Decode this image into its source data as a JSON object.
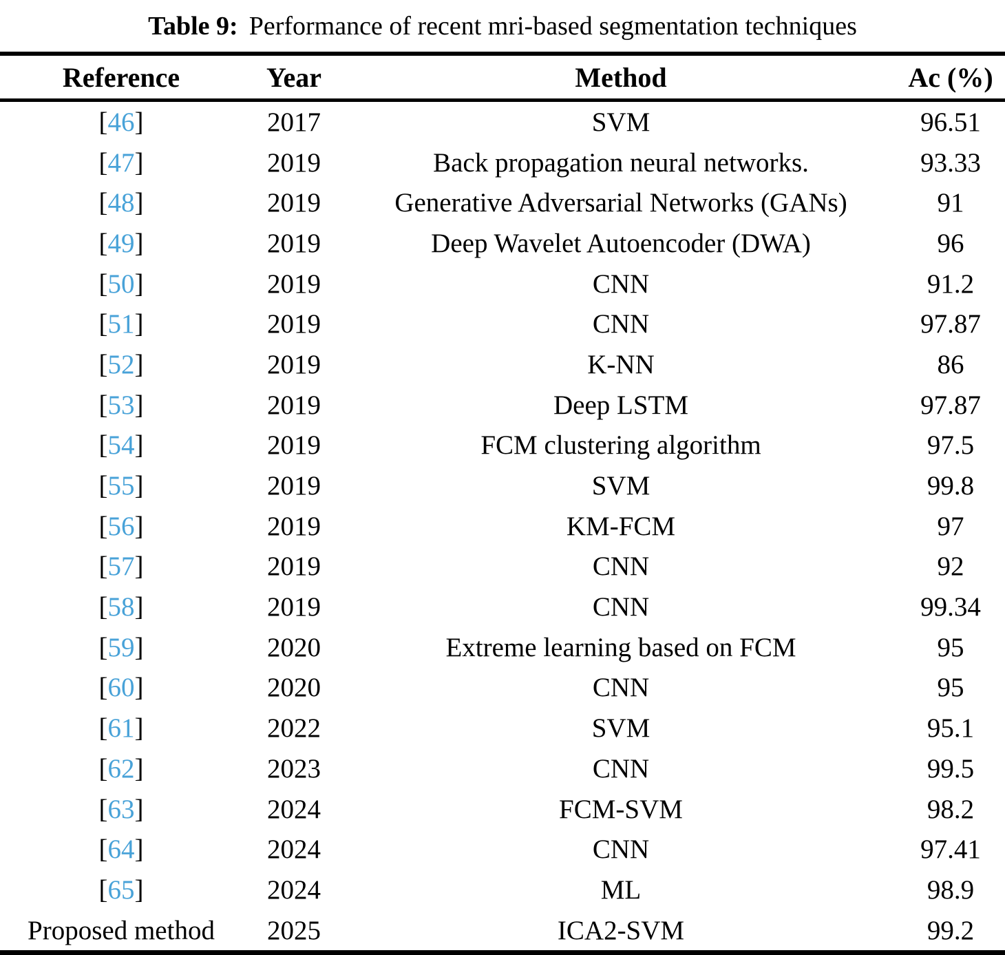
{
  "page": {
    "background": "#ffffff",
    "text_color": "#000000",
    "citation_color": "#48a2d8"
  },
  "table": {
    "title_label": "Table 9:",
    "title_text": "Performance of recent mri-based segmentation techniques",
    "columns": [
      "Reference",
      "Year",
      "Method",
      "Ac (%)"
    ],
    "rows": [
      {
        "ref": "46",
        "cite": true,
        "year": "2017",
        "method": "SVM",
        "ac": "96.51"
      },
      {
        "ref": "47",
        "cite": true,
        "year": "2019",
        "method": "Back propagation neural networks.",
        "ac": "93.33"
      },
      {
        "ref": "48",
        "cite": true,
        "year": "2019",
        "method": "Generative Adversarial Networks (GANs)",
        "ac": "91"
      },
      {
        "ref": "49",
        "cite": true,
        "year": "2019",
        "method": "Deep Wavelet Autoencoder (DWA)",
        "ac": "96"
      },
      {
        "ref": "50",
        "cite": true,
        "year": "2019",
        "method": "CNN",
        "ac": "91.2"
      },
      {
        "ref": "51",
        "cite": true,
        "year": "2019",
        "method": "CNN",
        "ac": "97.87"
      },
      {
        "ref": "52",
        "cite": true,
        "year": "2019",
        "method": "K-NN",
        "ac": "86"
      },
      {
        "ref": "53",
        "cite": true,
        "year": "2019",
        "method": "Deep LSTM",
        "ac": "97.87"
      },
      {
        "ref": "54",
        "cite": true,
        "year": "2019",
        "method": "FCM clustering algorithm",
        "ac": "97.5"
      },
      {
        "ref": "55",
        "cite": true,
        "year": "2019",
        "method": "SVM",
        "ac": "99.8"
      },
      {
        "ref": "56",
        "cite": true,
        "year": "2019",
        "method": "KM-FCM",
        "ac": "97"
      },
      {
        "ref": "57",
        "cite": true,
        "year": "2019",
        "method": "CNN",
        "ac": "92"
      },
      {
        "ref": "58",
        "cite": true,
        "year": "2019",
        "method": "CNN",
        "ac": "99.34"
      },
      {
        "ref": "59",
        "cite": true,
        "year": "2020",
        "method": "Extreme learning based on FCM",
        "ac": "95"
      },
      {
        "ref": "60",
        "cite": true,
        "year": "2020",
        "method": "CNN",
        "ac": "95"
      },
      {
        "ref": "61",
        "cite": true,
        "year": "2022",
        "method": "SVM",
        "ac": "95.1"
      },
      {
        "ref": "62",
        "cite": true,
        "year": "2023",
        "method": "CNN",
        "ac": "99.5"
      },
      {
        "ref": "63",
        "cite": true,
        "year": "2024",
        "method": "FCM-SVM",
        "ac": "98.2"
      },
      {
        "ref": "64",
        "cite": true,
        "year": "2024",
        "method": "CNN",
        "ac": "97.41"
      },
      {
        "ref": "65",
        "cite": true,
        "year": "2024",
        "method": "ML",
        "ac": "98.9"
      },
      {
        "ref": "Proposed method",
        "cite": false,
        "year": "2025",
        "method": "ICA2-SVM",
        "ac": "99.2"
      }
    ]
  }
}
